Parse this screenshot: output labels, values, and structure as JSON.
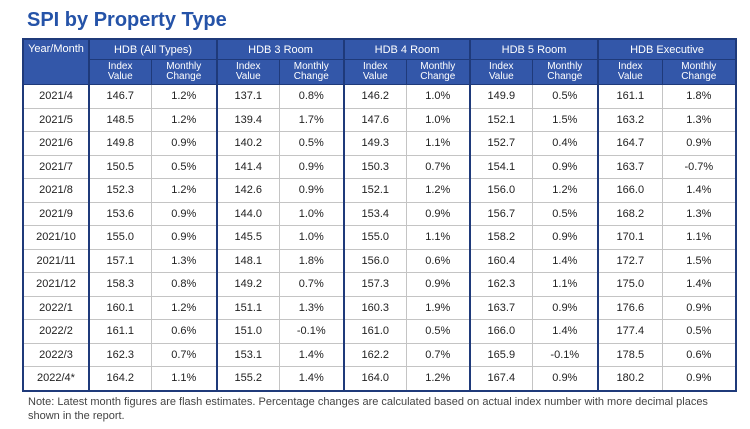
{
  "header": {
    "title": "SPI by Property Type"
  },
  "table": {
    "columns": [
      "Year/Month",
      "HDB (All Types)",
      "HDB 3 Room",
      "HDB 4 Room",
      "HDB 5 Room",
      "HDB Executive"
    ],
    "subheaders": [
      "Index Value",
      "Monthly Change",
      "Index Value",
      "Monthly Change",
      "Index Value",
      "Monthly Change",
      "Index Value",
      "Monthly Change",
      "Index Value",
      "Monthly Change"
    ],
    "rows": [
      [
        "2021/4",
        "146.7",
        "1.2%",
        "137.1",
        "0.8%",
        "146.2",
        "1.0%",
        "149.9",
        "0.5%",
        "161.1",
        "1.8%"
      ],
      [
        "2021/5",
        "148.5",
        "1.2%",
        "139.4",
        "1.7%",
        "147.6",
        "1.0%",
        "152.1",
        "1.5%",
        "163.2",
        "1.3%"
      ],
      [
        "2021/6",
        "149.8",
        "0.9%",
        "140.2",
        "0.5%",
        "149.3",
        "1.1%",
        "152.7",
        "0.4%",
        "164.7",
        "0.9%"
      ],
      [
        "2021/7",
        "150.5",
        "0.5%",
        "141.4",
        "0.9%",
        "150.3",
        "0.7%",
        "154.1",
        "0.9%",
        "163.7",
        "-0.7%"
      ],
      [
        "2021/8",
        "152.3",
        "1.2%",
        "142.6",
        "0.9%",
        "152.1",
        "1.2%",
        "156.0",
        "1.2%",
        "166.0",
        "1.4%"
      ],
      [
        "2021/9",
        "153.6",
        "0.9%",
        "144.0",
        "1.0%",
        "153.4",
        "0.9%",
        "156.7",
        "0.5%",
        "168.2",
        "1.3%"
      ],
      [
        "2021/10",
        "155.0",
        "0.9%",
        "145.5",
        "1.0%",
        "155.0",
        "1.1%",
        "158.2",
        "0.9%",
        "170.1",
        "1.1%"
      ],
      [
        "2021/11",
        "157.1",
        "1.3%",
        "148.1",
        "1.8%",
        "156.0",
        "0.6%",
        "160.4",
        "1.4%",
        "172.7",
        "1.5%"
      ],
      [
        "2021/12",
        "158.3",
        "0.8%",
        "149.2",
        "0.7%",
        "157.3",
        "0.9%",
        "162.3",
        "1.1%",
        "175.0",
        "1.4%"
      ],
      [
        "2022/1",
        "160.1",
        "1.2%",
        "151.1",
        "1.3%",
        "160.3",
        "1.9%",
        "163.7",
        "0.9%",
        "176.6",
        "0.9%"
      ],
      [
        "2022/2",
        "161.1",
        "0.6%",
        "151.0",
        "-0.1%",
        "161.0",
        "0.5%",
        "166.0",
        "1.4%",
        "177.4",
        "0.5%"
      ],
      [
        "2022/3",
        "162.3",
        "0.7%",
        "153.1",
        "1.4%",
        "162.2",
        "0.7%",
        "165.9",
        "-0.1%",
        "178.5",
        "0.6%"
      ],
      [
        "2022/4*",
        "164.2",
        "1.1%",
        "155.2",
        "1.4%",
        "164.0",
        "1.2%",
        "167.4",
        "0.9%",
        "180.2",
        "0.9%"
      ]
    ]
  },
  "note": "Note: Latest month figures are flash estimates. Percentage changes are calculated based on actual index number with more decimal places shown in the report."
}
